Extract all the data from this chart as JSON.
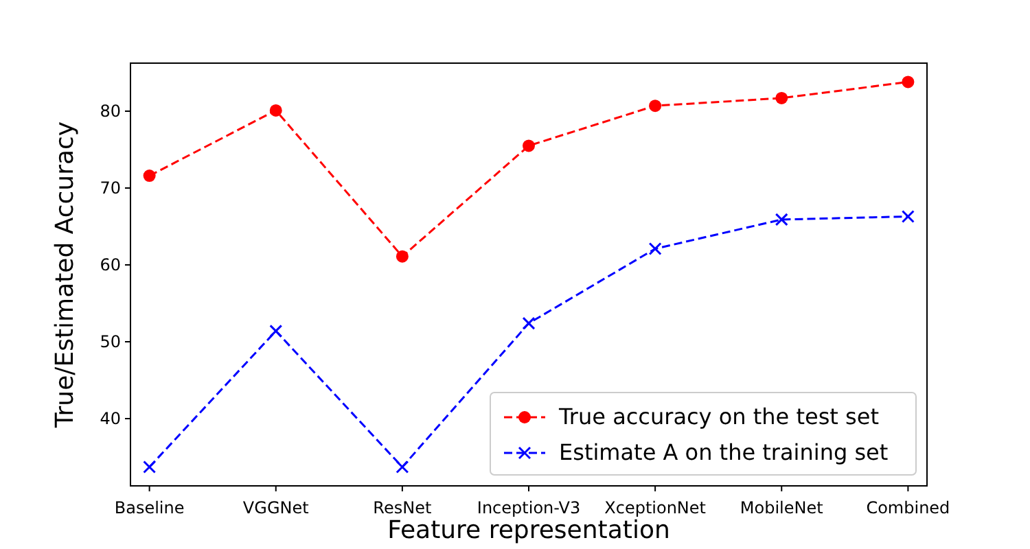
{
  "chart_data": {
    "type": "line",
    "xlabel": "Feature representation",
    "ylabel": "True/Estimated Accuracy",
    "categories": [
      "Baseline",
      "VGGNet",
      "ResNet",
      "Inception-V3",
      "XceptionNet",
      "MobileNet",
      "Combined"
    ],
    "series": [
      {
        "name": "True accuracy on the test set",
        "color": "#ff0000",
        "marker": "circle",
        "line_style": "dashed",
        "values": [
          71.6,
          80.1,
          61.1,
          75.5,
          80.7,
          81.7,
          83.8
        ]
      },
      {
        "name": "Estimate A on the training set",
        "color": "#0000ff",
        "marker": "cross",
        "line_style": "dashed",
        "values": [
          33.7,
          51.4,
          33.7,
          52.4,
          62.1,
          65.9,
          66.3
        ]
      }
    ],
    "ylim": [
      31.25,
      86.25
    ],
    "yticks": [
      40,
      50,
      60,
      70,
      80
    ],
    "legend": "bottom right",
    "grid": false
  }
}
